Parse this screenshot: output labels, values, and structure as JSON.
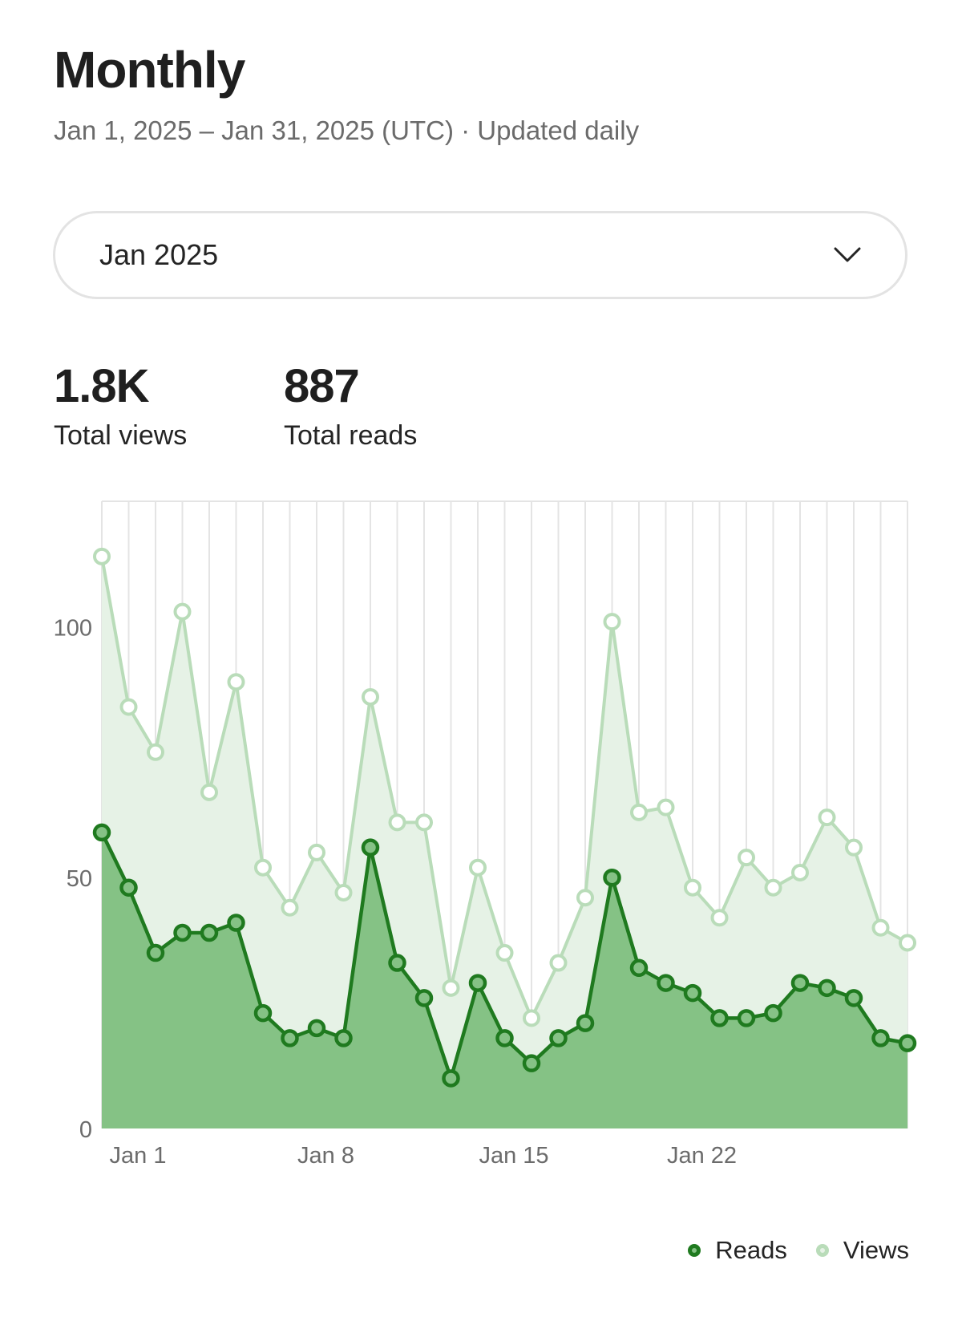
{
  "header": {
    "title": "Monthly",
    "subtitle": "Jan 1, 2025 – Jan 31, 2025 (UTC) · Updated daily"
  },
  "period_select": {
    "value": "Jan 2025",
    "icon": "chevron-down-icon"
  },
  "stats": {
    "views": {
      "value": "1.8K",
      "label": "Total views"
    },
    "reads": {
      "value": "887",
      "label": "Total reads"
    }
  },
  "colors": {
    "reads_line": "#1f7a1f",
    "reads_fill": "#85c285",
    "views_line": "#b9dcb9",
    "views_fill": "#e6f2e6",
    "grid": "#e4e4e4",
    "axis_text": "#6b6b6b"
  },
  "chart_data": {
    "type": "area",
    "x": [
      "Jan 1",
      "Jan 2",
      "Jan 3",
      "Jan 4",
      "Jan 5",
      "Jan 6",
      "Jan 7",
      "Jan 8",
      "Jan 9",
      "Jan 10",
      "Jan 11",
      "Jan 12",
      "Jan 13",
      "Jan 14",
      "Jan 15",
      "Jan 16",
      "Jan 17",
      "Jan 18",
      "Jan 19",
      "Jan 20",
      "Jan 21",
      "Jan 22",
      "Jan 23",
      "Jan 24",
      "Jan 25",
      "Jan 26",
      "Jan 27",
      "Jan 28",
      "Jan 29",
      "Jan 30",
      "Jan 31"
    ],
    "x_tick_labels": [
      "Jan 1",
      "Jan 8",
      "Jan 15",
      "Jan 22"
    ],
    "y_ticks": [
      0,
      50,
      100
    ],
    "ylim": [
      0,
      125
    ],
    "grid": "vertical",
    "legend_position": "bottom-right",
    "series": [
      {
        "name": "Views",
        "values": [
          114,
          84,
          75,
          103,
          67,
          89,
          52,
          44,
          55,
          47,
          86,
          61,
          61,
          28,
          52,
          35,
          22,
          33,
          46,
          101,
          63,
          64,
          48,
          42,
          54,
          48,
          51,
          62,
          56,
          40,
          37
        ]
      },
      {
        "name": "Reads",
        "values": [
          59,
          48,
          35,
          39,
          39,
          41,
          23,
          18,
          20,
          18,
          56,
          33,
          26,
          10,
          29,
          18,
          13,
          18,
          21,
          50,
          32,
          29,
          27,
          22,
          22,
          23,
          29,
          28,
          26,
          18,
          17
        ]
      }
    ]
  }
}
